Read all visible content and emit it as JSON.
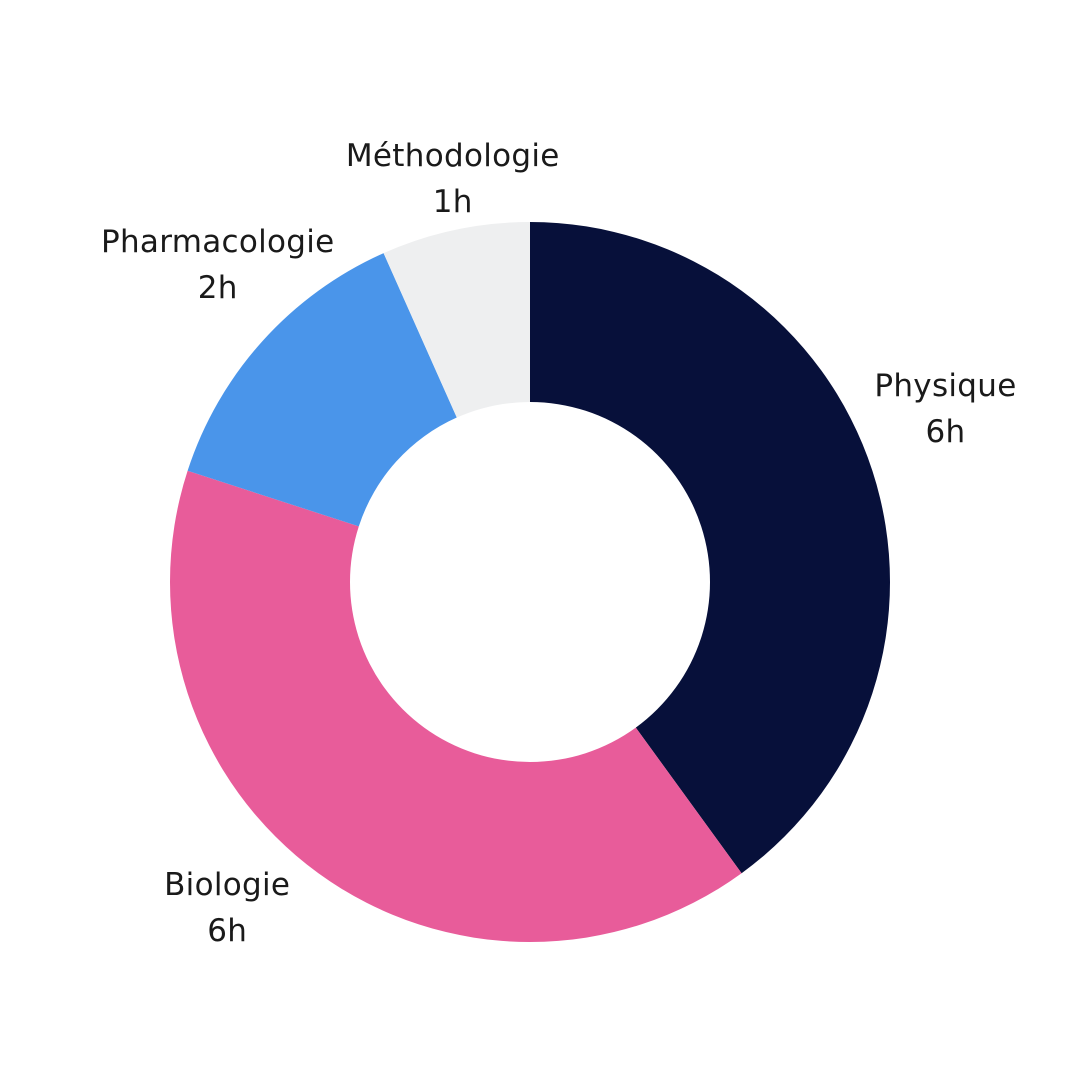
{
  "chart_data": {
    "type": "pie",
    "style": "donut",
    "unit": "h",
    "slices": [
      {
        "name": "Physique",
        "value": 6,
        "value_label": "6h",
        "color": "#07103A"
      },
      {
        "name": "Biologie",
        "value": 6,
        "value_label": "6h",
        "color": "#E85C9A"
      },
      {
        "name": "Pharmacologie",
        "value": 2,
        "value_label": "2h",
        "color": "#4A95EA"
      },
      {
        "name": "Méthodologie",
        "value": 1,
        "value_label": "1h",
        "color": "#EEEFF0"
      }
    ],
    "start_angle": "12 o'clock",
    "direction": "clockwise",
    "legend": "none",
    "label_position": "outside"
  }
}
